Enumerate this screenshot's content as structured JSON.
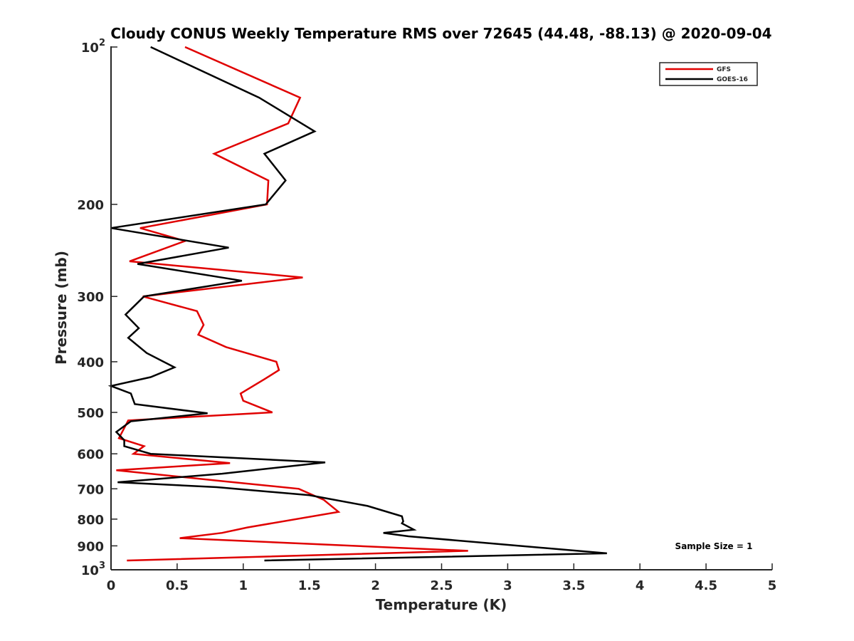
{
  "chart_data": {
    "type": "line",
    "title": "Cloudy CONUS Weekly Temperature RMS over 72645 (44.48, -88.13) @ 2020-09-04",
    "xlabel": "Temperature (K)",
    "ylabel": "Pressure (mb)",
    "xlim": [
      0,
      5
    ],
    "ylim": [
      100,
      1000
    ],
    "y_scale": "log",
    "y_reversed": true,
    "grid": false,
    "legend_position": "top-right",
    "x_ticks": [
      "0",
      "0.5",
      "1",
      "1.5",
      "2",
      "2.5",
      "3",
      "3.5",
      "4",
      "4.5",
      "5"
    ],
    "y_ticks": [
      {
        "value": 200,
        "label": "200"
      },
      {
        "value": 300,
        "label": "300"
      },
      {
        "value": 400,
        "label": "400"
      },
      {
        "value": 500,
        "label": "500"
      },
      {
        "value": 600,
        "label": "600"
      },
      {
        "value": 700,
        "label": "700"
      },
      {
        "value": 800,
        "label": "800"
      },
      {
        "value": 900,
        "label": "900"
      }
    ],
    "y_tick_min": {
      "value": 100,
      "base": "10",
      "exp": "2"
    },
    "y_tick_max": {
      "value": 1000,
      "base": "10",
      "exp": "3"
    },
    "annotation": "Sample Size = 1",
    "series": [
      {
        "name": "GFS",
        "color": "#e00000",
        "points": [
          [
            0.56,
            100
          ],
          [
            1.43,
            125
          ],
          [
            1.34,
            140
          ],
          [
            0.78,
            160
          ],
          [
            1.19,
            180
          ],
          [
            1.18,
            200
          ],
          [
            0.22,
            222
          ],
          [
            0.56,
            235
          ],
          [
            0.14,
            257
          ],
          [
            1.45,
            276
          ],
          [
            0.24,
            300
          ],
          [
            0.65,
            320
          ],
          [
            0.7,
            340
          ],
          [
            0.66,
            355
          ],
          [
            0.87,
            375
          ],
          [
            1.25,
            400
          ],
          [
            1.27,
            415
          ],
          [
            1.16,
            432
          ],
          [
            0.98,
            460
          ],
          [
            1.0,
            475
          ],
          [
            1.22,
            500
          ],
          [
            0.13,
            518
          ],
          [
            0.06,
            560
          ],
          [
            0.25,
            580
          ],
          [
            0.17,
            600
          ],
          [
            0.9,
            625
          ],
          [
            0.04,
            645
          ],
          [
            0.8,
            675
          ],
          [
            1.42,
            700
          ],
          [
            1.61,
            735
          ],
          [
            1.72,
            775
          ],
          [
            1.03,
            830
          ],
          [
            0.84,
            850
          ],
          [
            0.52,
            870
          ],
          [
            2.7,
            920
          ],
          [
            0.12,
            960
          ]
        ]
      },
      {
        "name": "GOES-16",
        "color": "#000000",
        "points": [
          [
            0.3,
            100
          ],
          [
            1.12,
            125
          ],
          [
            1.54,
            145
          ],
          [
            1.16,
            160
          ],
          [
            1.32,
            180
          ],
          [
            1.17,
            200
          ],
          [
            0.0,
            222
          ],
          [
            0.89,
            242
          ],
          [
            0.2,
            260
          ],
          [
            0.99,
            280
          ],
          [
            0.25,
            300
          ],
          [
            0.11,
            325
          ],
          [
            0.21,
            345
          ],
          [
            0.13,
            360
          ],
          [
            0.27,
            385
          ],
          [
            0.48,
            410
          ],
          [
            0.3,
            428
          ],
          [
            0.0,
            445
          ],
          [
            0.15,
            460
          ],
          [
            0.18,
            482
          ],
          [
            0.73,
            502
          ],
          [
            0.15,
            520
          ],
          [
            0.04,
            545
          ],
          [
            0.1,
            565
          ],
          [
            0.1,
            580
          ],
          [
            0.3,
            600
          ],
          [
            1.62,
            623
          ],
          [
            0.84,
            655
          ],
          [
            0.05,
            680
          ],
          [
            0.8,
            695
          ],
          [
            1.5,
            720
          ],
          [
            1.94,
            755
          ],
          [
            2.2,
            790
          ],
          [
            2.21,
            808
          ],
          [
            2.2,
            815
          ],
          [
            2.29,
            838
          ],
          [
            2.06,
            850
          ],
          [
            2.25,
            863
          ],
          [
            3.75,
            930
          ],
          [
            1.16,
            960
          ]
        ]
      }
    ]
  }
}
